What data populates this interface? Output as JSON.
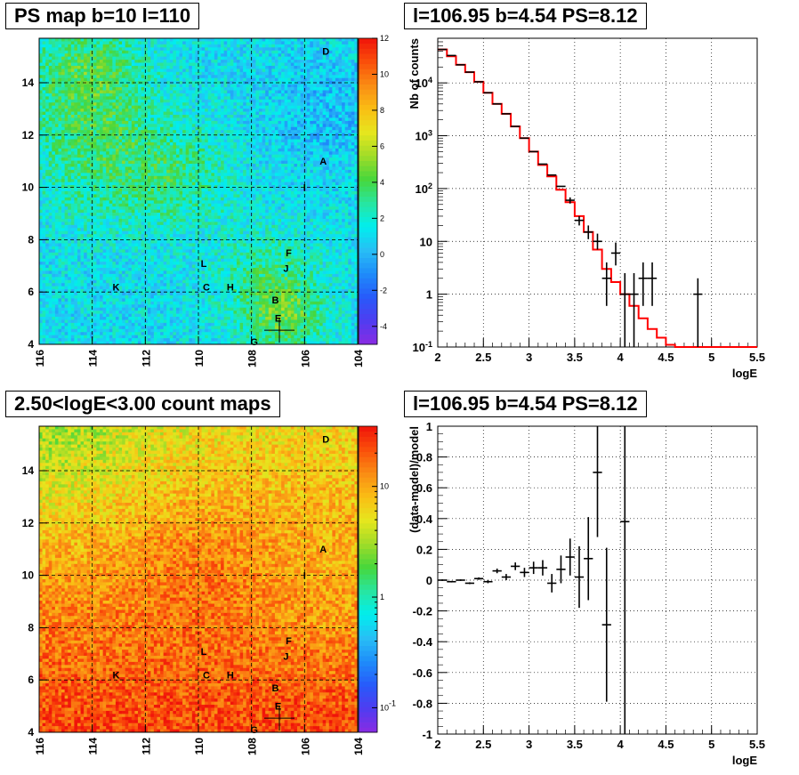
{
  "titles": {
    "ps_map": "PS map b=10 l=110",
    "spectrum": "l=106.95 b=4.54 PS=8.12",
    "count_map": "2.50<logE<3.00 count maps",
    "residual": "l=106.95 b=4.54 PS=8.12"
  },
  "colors": {
    "data": "#000000",
    "model": "#ff0000",
    "grid": "#000000"
  },
  "chart_data": [
    {
      "type": "heatmap",
      "title": "PS map b=10 l=110",
      "x_ticks": [
        "116",
        "114",
        "112",
        "110",
        "108",
        "106",
        "104"
      ],
      "x_range": [
        116,
        104
      ],
      "y_ticks": [
        "4",
        "6",
        "8",
        "10",
        "12",
        "14"
      ],
      "y_range": [
        4,
        15.7
      ],
      "colorbar": {
        "scale": "linear",
        "range": [
          -5,
          12
        ],
        "ticks": [
          "-4",
          "-2",
          "0",
          "2",
          "4",
          "6",
          "8",
          "10",
          "12"
        ]
      },
      "grid": true,
      "labels": [
        {
          "text": "D",
          "l": 105.2,
          "b": 15.2
        },
        {
          "text": "A",
          "l": 105.3,
          "b": 11.0
        },
        {
          "text": "I",
          "l": 106.0,
          "b": 10.0
        },
        {
          "text": "F",
          "l": 106.6,
          "b": 7.5
        },
        {
          "text": "J",
          "l": 106.7,
          "b": 6.9
        },
        {
          "text": "L",
          "l": 109.8,
          "b": 7.1
        },
        {
          "text": "K",
          "l": 113.1,
          "b": 6.2
        },
        {
          "text": "C",
          "l": 109.7,
          "b": 6.2
        },
        {
          "text": "H",
          "l": 108.8,
          "b": 6.2
        },
        {
          "text": "B",
          "l": 107.1,
          "b": 5.7
        },
        {
          "text": "E",
          "l": 107.0,
          "b": 5.0
        },
        {
          "text": "G",
          "l": 107.9,
          "b": 4.1
        }
      ],
      "marker": {
        "l": 106.95,
        "b": 4.54
      }
    },
    {
      "type": "line",
      "title": "l=106.95 b=4.54 PS=8.12",
      "xlabel": "logE",
      "ylabel": "Nb of counts",
      "xlim": [
        2,
        5.5
      ],
      "ylim": [
        0.1,
        70000
      ],
      "yscale": "log",
      "x_ticks": [
        "2",
        "2.5",
        "3",
        "3.5",
        "4",
        "4.5",
        "5",
        "5.5"
      ],
      "y_ticks": [
        "10^-1",
        "1",
        "10",
        "10^2",
        "10^3",
        "10^4"
      ],
      "grid": true,
      "series": [
        {
          "points": [
            {
              "x": 2.05,
              "y": 43000
            },
            {
              "x": 2.15,
              "y": 33000
            },
            {
              "x": 2.25,
              "y": 22000
            },
            {
              "x": 2.35,
              "y": 16000
            },
            {
              "x": 2.45,
              "y": 10500
            },
            {
              "x": 2.55,
              "y": 6500
            },
            {
              "x": 2.65,
              "y": 4000
            },
            {
              "x": 2.75,
              "y": 2600
            },
            {
              "x": 2.85,
              "y": 1500
            },
            {
              "x": 2.95,
              "y": 900
            },
            {
              "x": 3.05,
              "y": 500
            },
            {
              "x": 3.15,
              "y": 290
            },
            {
              "x": 3.25,
              "y": 180
            },
            {
              "x": 3.35,
              "y": 110
            },
            {
              "x": 3.45,
              "y": 60,
              "ylo": 52,
              "yhi": 68
            },
            {
              "x": 3.55,
              "y": 25,
              "ylo": 20,
              "yhi": 30
            },
            {
              "x": 3.65,
              "y": 15,
              "ylo": 11,
              "yhi": 20
            },
            {
              "x": 3.75,
              "y": 10,
              "ylo": 7,
              "yhi": 14
            },
            {
              "x": 3.85,
              "y": 2,
              "ylo": 0.6,
              "yhi": 4
            },
            {
              "x": 3.95,
              "y": 6,
              "ylo": 3.5,
              "yhi": 9.5
            },
            {
              "x": 4.05,
              "y": 1,
              "ylo": 0.1,
              "yhi": 2.5
            },
            {
              "x": 4.15,
              "y": 1,
              "ylo": 0.1,
              "yhi": 2.5
            },
            {
              "x": 4.25,
              "y": 2,
              "ylo": 0.6,
              "yhi": 4
            },
            {
              "x": 4.35,
              "y": 2,
              "ylo": 0.6,
              "yhi": 4
            },
            {
              "x": 4.85,
              "y": 1,
              "ylo": 0.1,
              "yhi": 2
            }
          ]
        },
        {
          "step": true,
          "edges": [
            2,
            2.1,
            2.2,
            2.3,
            2.4,
            2.5,
            2.6,
            2.7,
            2.8,
            2.9,
            3.0,
            3.1,
            3.2,
            3.3,
            3.4,
            3.5,
            3.6,
            3.7,
            3.8,
            3.9,
            4.0,
            4.1,
            4.2,
            4.3,
            4.4,
            4.5,
            4.6,
            5.5
          ],
          "values": [
            43000,
            32000,
            22000,
            16000,
            10500,
            6500,
            4000,
            2600,
            1500,
            900,
            500,
            280,
            170,
            95,
            55,
            30,
            15,
            7,
            3,
            1.7,
            1.0,
            0.6,
            0.35,
            0.22,
            0.15,
            0.11,
            0.1
          ]
        }
      ]
    },
    {
      "type": "heatmap",
      "title": "2.50<logE<3.00 count maps",
      "x_ticks": [
        "116",
        "114",
        "112",
        "110",
        "108",
        "106",
        "104"
      ],
      "x_range": [
        116,
        104
      ],
      "y_ticks": [
        "4",
        "6",
        "8",
        "10",
        "12",
        "14"
      ],
      "y_range": [
        4,
        15.7
      ],
      "colorbar": {
        "scale": "log",
        "range": [
          0.06,
          35
        ],
        "ticks": [
          "10^-1",
          "1",
          "10"
        ]
      },
      "grid": true,
      "labels": [
        {
          "text": "D",
          "l": 105.2,
          "b": 15.2
        },
        {
          "text": "A",
          "l": 105.3,
          "b": 11.0
        },
        {
          "text": "I",
          "l": 106.0,
          "b": 10.0
        },
        {
          "text": "F",
          "l": 106.6,
          "b": 7.5
        },
        {
          "text": "J",
          "l": 106.7,
          "b": 6.9
        },
        {
          "text": "L",
          "l": 109.8,
          "b": 7.1
        },
        {
          "text": "K",
          "l": 113.1,
          "b": 6.2
        },
        {
          "text": "C",
          "l": 109.7,
          "b": 6.2
        },
        {
          "text": "H",
          "l": 108.8,
          "b": 6.2
        },
        {
          "text": "B",
          "l": 107.1,
          "b": 5.7
        },
        {
          "text": "E",
          "l": 107.0,
          "b": 5.0
        },
        {
          "text": "G",
          "l": 107.9,
          "b": 4.1
        }
      ],
      "marker": {
        "l": 106.95,
        "b": 4.54
      }
    },
    {
      "type": "scatter",
      "title": "l=106.95 b=4.54 PS=8.12",
      "xlabel": "logE",
      "ylabel": "(data-model)/model",
      "xlim": [
        2,
        5.5
      ],
      "ylim": [
        -1,
        1
      ],
      "x_ticks": [
        "2",
        "2.5",
        "3",
        "3.5",
        "4",
        "4.5",
        "5",
        "5.5"
      ],
      "y_ticks": [
        "-1",
        "-0.8",
        "-0.6",
        "-0.4",
        "-0.2",
        "0",
        "0.2",
        "0.4",
        "0.6",
        "0.8",
        "1"
      ],
      "grid": true,
      "series": [
        {
          "points": [
            {
              "x": 2.05,
              "y": 0,
              "err": 0.005
            },
            {
              "x": 2.15,
              "y": -0.01,
              "err": 0.005
            },
            {
              "x": 2.25,
              "y": 0,
              "err": 0.005
            },
            {
              "x": 2.35,
              "y": -0.02,
              "err": 0.006
            },
            {
              "x": 2.45,
              "y": 0.01,
              "err": 0.008
            },
            {
              "x": 2.55,
              "y": -0.01,
              "err": 0.01
            },
            {
              "x": 2.65,
              "y": 0.06,
              "err": 0.015
            },
            {
              "x": 2.75,
              "y": 0.02,
              "err": 0.02
            },
            {
              "x": 2.85,
              "y": 0.09,
              "err": 0.025
            },
            {
              "x": 2.95,
              "y": 0.05,
              "err": 0.03
            },
            {
              "x": 3.05,
              "y": 0.08,
              "err": 0.04
            },
            {
              "x": 3.15,
              "y": 0.08,
              "err": 0.05
            },
            {
              "x": 3.25,
              "y": -0.02,
              "err": 0.06
            },
            {
              "x": 3.35,
              "y": 0.07,
              "err": 0.09
            },
            {
              "x": 3.45,
              "y": 0.15,
              "err": 0.12
            },
            {
              "x": 3.55,
              "y": 0.02,
              "err": 0.2
            },
            {
              "x": 3.65,
              "y": 0.14,
              "err": 0.27
            },
            {
              "x": 3.75,
              "y": 0.7,
              "err": 0.42
            },
            {
              "x": 3.85,
              "y": -0.29,
              "err": 0.5
            },
            {
              "x": 4.05,
              "y": 0.38,
              "err": 1.4
            }
          ]
        }
      ]
    }
  ]
}
